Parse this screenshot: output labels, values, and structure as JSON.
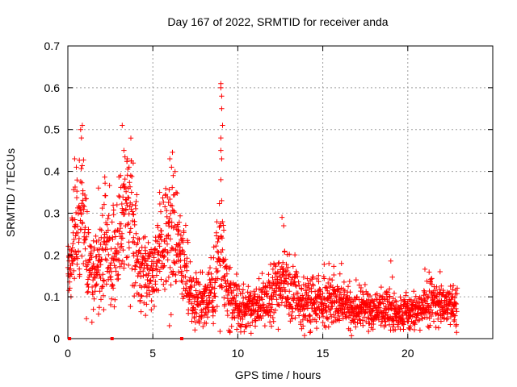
{
  "chart_data": {
    "type": "scatter",
    "title": "Day 167 of 2022, SRMTID for receiver anda",
    "xlabel": "GPS time / hours",
    "ylabel": "SRMTID / TECUs",
    "xlim": [
      0,
      25
    ],
    "ylim": [
      0,
      0.7
    ],
    "xticks": [
      0,
      5,
      10,
      15,
      20
    ],
    "yticks": [
      0,
      0.1,
      0.2,
      0.3,
      0.4,
      0.5,
      0.6,
      0.7
    ],
    "x_tick_labels": [
      "0",
      "5",
      "10",
      "15",
      "20"
    ],
    "y_tick_labels": [
      "0",
      "0.1",
      "0.2",
      "0.3",
      "0.4",
      "0.5",
      "0.6",
      "0.7"
    ],
    "grid": true,
    "series": [
      {
        "name": "SRMTID",
        "color": "#ff0000",
        "marker": "plus",
        "profile": [
          [
            0.0,
            0.18,
            0.04
          ],
          [
            0.2,
            0.2,
            0.05
          ],
          [
            0.4,
            0.27,
            0.07
          ],
          [
            0.6,
            0.22,
            0.06
          ],
          [
            0.8,
            0.3,
            0.09
          ],
          [
            1.0,
            0.24,
            0.07
          ],
          [
            1.3,
            0.17,
            0.05
          ],
          [
            1.6,
            0.14,
            0.04
          ],
          [
            1.9,
            0.17,
            0.05
          ],
          [
            2.2,
            0.2,
            0.06
          ],
          [
            2.5,
            0.18,
            0.05
          ],
          [
            2.8,
            0.21,
            0.06
          ],
          [
            3.1,
            0.24,
            0.08
          ],
          [
            3.4,
            0.32,
            0.09
          ],
          [
            3.7,
            0.3,
            0.08
          ],
          [
            4.0,
            0.22,
            0.06
          ],
          [
            4.3,
            0.17,
            0.05
          ],
          [
            4.6,
            0.15,
            0.05
          ],
          [
            4.9,
            0.14,
            0.04
          ],
          [
            5.2,
            0.17,
            0.05
          ],
          [
            5.5,
            0.22,
            0.06
          ],
          [
            5.8,
            0.25,
            0.08
          ],
          [
            6.1,
            0.27,
            0.08
          ],
          [
            6.4,
            0.21,
            0.06
          ],
          [
            6.7,
            0.19,
            0.05
          ],
          [
            7.0,
            0.14,
            0.04
          ],
          [
            7.4,
            0.1,
            0.03
          ],
          [
            7.8,
            0.09,
            0.03
          ],
          [
            8.2,
            0.1,
            0.03
          ],
          [
            8.6,
            0.12,
            0.04
          ],
          [
            9.0,
            0.22,
            0.08
          ],
          [
            9.3,
            0.12,
            0.04
          ],
          [
            9.7,
            0.09,
            0.03
          ],
          [
            10.1,
            0.07,
            0.025
          ],
          [
            10.5,
            0.07,
            0.025
          ],
          [
            10.9,
            0.08,
            0.025
          ],
          [
            11.3,
            0.08,
            0.025
          ],
          [
            11.7,
            0.09,
            0.03
          ],
          [
            12.1,
            0.1,
            0.04
          ],
          [
            12.4,
            0.14,
            0.05
          ],
          [
            12.7,
            0.14,
            0.05
          ],
          [
            13.0,
            0.1,
            0.04
          ],
          [
            13.5,
            0.09,
            0.03
          ],
          [
            14.0,
            0.08,
            0.03
          ],
          [
            14.5,
            0.09,
            0.03
          ],
          [
            15.0,
            0.09,
            0.03
          ],
          [
            15.5,
            0.08,
            0.03
          ],
          [
            16.0,
            0.09,
            0.03
          ],
          [
            16.5,
            0.07,
            0.025
          ],
          [
            17.0,
            0.07,
            0.025
          ],
          [
            17.5,
            0.07,
            0.025
          ],
          [
            18.0,
            0.07,
            0.02
          ],
          [
            18.5,
            0.07,
            0.025
          ],
          [
            19.0,
            0.07,
            0.025
          ],
          [
            19.5,
            0.06,
            0.02
          ],
          [
            20.0,
            0.06,
            0.02
          ],
          [
            20.5,
            0.06,
            0.02
          ],
          [
            21.0,
            0.08,
            0.025
          ],
          [
            21.5,
            0.09,
            0.03
          ],
          [
            22.0,
            0.08,
            0.025
          ],
          [
            22.4,
            0.08,
            0.025
          ],
          [
            22.8,
            0.09,
            0.03
          ]
        ],
        "peaks": [
          [
            0.75,
            0.5
          ],
          [
            0.8,
            0.48
          ],
          [
            0.85,
            0.51
          ],
          [
            0.4,
            0.43
          ],
          [
            0.5,
            0.41
          ],
          [
            1.8,
            0.36
          ],
          [
            3.2,
            0.51
          ],
          [
            3.3,
            0.45
          ],
          [
            3.5,
            0.43
          ],
          [
            3.6,
            0.41
          ],
          [
            3.7,
            0.39
          ],
          [
            5.4,
            0.35
          ],
          [
            6.0,
            0.43
          ],
          [
            6.1,
            0.41
          ],
          [
            6.2,
            0.39
          ],
          [
            9.0,
            0.61
          ],
          [
            9.0,
            0.6
          ],
          [
            9.05,
            0.58
          ],
          [
            9.05,
            0.55
          ],
          [
            9.1,
            0.51
          ],
          [
            9.0,
            0.48
          ],
          [
            9.0,
            0.45
          ],
          [
            9.05,
            0.43
          ],
          [
            9.0,
            0.38
          ],
          [
            9.05,
            0.33
          ],
          [
            12.6,
            0.29
          ],
          [
            12.7,
            0.27
          ],
          [
            16.1,
            0.18
          ],
          [
            21.9,
            0.16
          ]
        ],
        "x_start": 0.0,
        "x_end": 22.9,
        "n_points": 2200
      }
    ],
    "axis_markers_x": [
      0.1,
      2.6,
      6.7
    ]
  }
}
